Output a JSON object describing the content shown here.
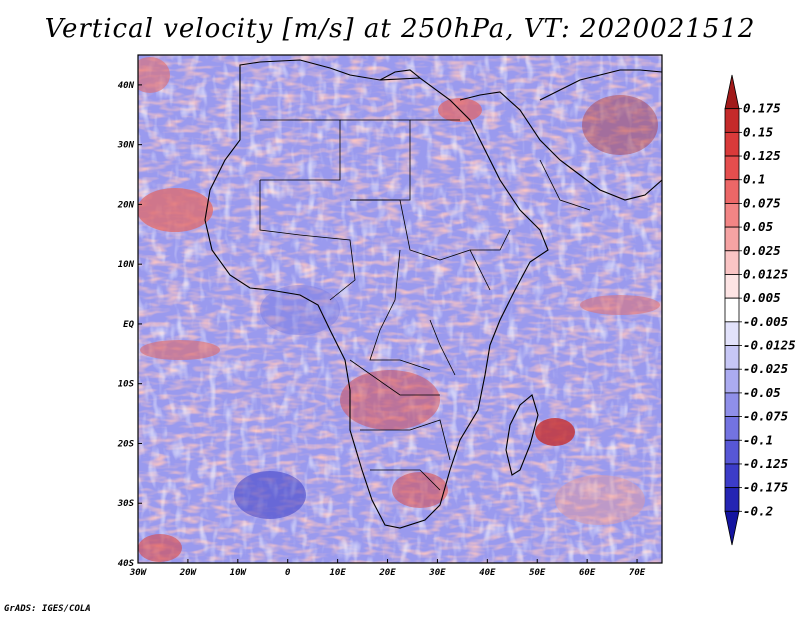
{
  "title": "Vertical velocity [m/s] at 250hPa, VT: 2020021512",
  "credit": "GrADS: IGES/COLA",
  "map": {
    "lon_range": [
      -30,
      75
    ],
    "lat_range": [
      -40,
      45
    ],
    "lon_ticks": [
      {
        "value": -30,
        "label": "30W"
      },
      {
        "value": -20,
        "label": "20W"
      },
      {
        "value": -10,
        "label": "10W"
      },
      {
        "value": 0,
        "label": "0"
      },
      {
        "value": 10,
        "label": "10E"
      },
      {
        "value": 20,
        "label": "20E"
      },
      {
        "value": 30,
        "label": "30E"
      },
      {
        "value": 40,
        "label": "40E"
      },
      {
        "value": 50,
        "label": "50E"
      },
      {
        "value": 60,
        "label": "60E"
      },
      {
        "value": 70,
        "label": "70E"
      }
    ],
    "lat_ticks": [
      {
        "value": 40,
        "label": "40N"
      },
      {
        "value": 30,
        "label": "30N"
      },
      {
        "value": 20,
        "label": "20N"
      },
      {
        "value": 10,
        "label": "10N"
      },
      {
        "value": 0,
        "label": "EQ"
      },
      {
        "value": -10,
        "label": "10S"
      },
      {
        "value": -20,
        "label": "20S"
      },
      {
        "value": -30,
        "label": "30S"
      },
      {
        "value": -40,
        "label": "40S"
      }
    ]
  },
  "colorbar": {
    "labels": [
      "0.175",
      "0.15",
      "0.125",
      "0.1",
      "0.075",
      "0.05",
      "0.025",
      "0.0125",
      "0.005",
      "-0.005",
      "-0.0125",
      "-0.025",
      "-0.05",
      "-0.075",
      "-0.1",
      "-0.125",
      "-0.175",
      "-0.2"
    ],
    "colors": [
      "#a11a1a",
      "#c42a2a",
      "#d93a3a",
      "#e54e4e",
      "#ec6767",
      "#f28585",
      "#f6a3a3",
      "#fac4c4",
      "#fde4e4",
      "#ffffff",
      "#e2e2fb",
      "#c7c7f6",
      "#ababf0",
      "#8f8fe9",
      "#7373e1",
      "#5757d6",
      "#3c3cc8",
      "#2424b3",
      "#1414a0"
    ]
  }
}
